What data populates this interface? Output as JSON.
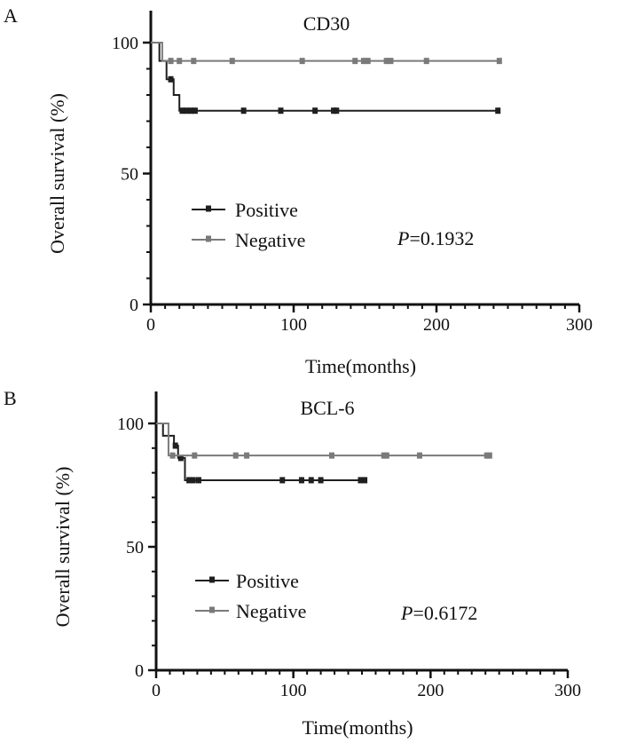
{
  "colors": {
    "positive": "#1f1f1f",
    "negative": "#7a7a7a",
    "axis": "#111111"
  },
  "chart_data": [
    {
      "panel": "A",
      "type": "line",
      "subtype": "kaplan-meier",
      "title": "CD30",
      "xlabel": "Time(months)",
      "ylabel": "Overall survival (%)",
      "xlim": [
        0,
        300
      ],
      "ylim": [
        0,
        100
      ],
      "xticks": [
        "0",
        "100",
        "200",
        "300"
      ],
      "yticks": [
        "0",
        "50",
        "100"
      ],
      "legend_position": "lower-left",
      "p_label": "P",
      "p_value": "=0.1932",
      "series": [
        {
          "name": "Positive",
          "color_key": "positive",
          "steps": [
            [
              0,
              100
            ],
            [
              6,
              93
            ],
            [
              11,
              86
            ],
            [
              16,
              80
            ],
            [
              20,
              74
            ]
          ],
          "end_x": 243,
          "censored": [
            [
              14,
              86
            ],
            [
              22,
              74
            ],
            [
              25,
              74
            ],
            [
              28,
              74
            ],
            [
              31,
              74
            ],
            [
              65,
              74
            ],
            [
              91,
              74
            ],
            [
              115,
              74
            ],
            [
              128,
              74
            ],
            [
              130,
              74
            ],
            [
              243,
              74
            ]
          ]
        },
        {
          "name": "Negative",
          "color_key": "negative",
          "steps": [
            [
              0,
              100
            ],
            [
              8,
              93
            ]
          ],
          "end_x": 244,
          "censored": [
            [
              14,
              93
            ],
            [
              20,
              93
            ],
            [
              30,
              93
            ],
            [
              57,
              93
            ],
            [
              106,
              93
            ],
            [
              143,
              93
            ],
            [
              149,
              93
            ],
            [
              152,
              93
            ],
            [
              165,
              93
            ],
            [
              168,
              93
            ],
            [
              193,
              93
            ],
            [
              244,
              93
            ]
          ]
        }
      ]
    },
    {
      "panel": "B",
      "type": "line",
      "subtype": "kaplan-meier",
      "title": "BCL-6",
      "xlabel": "Time(months)",
      "ylabel": "Overall survival (%)",
      "xlim": [
        0,
        300
      ],
      "ylim": [
        0,
        100
      ],
      "xticks": [
        "0",
        "100",
        "200",
        "300"
      ],
      "yticks": [
        "0",
        "50",
        "100"
      ],
      "legend_position": "lower-left",
      "p_label": "P",
      "p_value": "=0.6172",
      "series": [
        {
          "name": "Positive",
          "color_key": "positive",
          "steps": [
            [
              0,
              100
            ],
            [
              5,
              95
            ],
            [
              13,
              91
            ],
            [
              16,
              86
            ],
            [
              21,
              77
            ]
          ],
          "end_x": 152,
          "censored": [
            [
              14,
              91
            ],
            [
              18,
              86
            ],
            [
              24,
              77
            ],
            [
              27,
              77
            ],
            [
              31,
              77
            ],
            [
              92,
              77
            ],
            [
              106,
              77
            ],
            [
              113,
              77
            ],
            [
              120,
              77
            ],
            [
              149,
              77
            ],
            [
              152,
              77
            ]
          ]
        },
        {
          "name": "Negative",
          "color_key": "negative",
          "steps": [
            [
              0,
              100
            ],
            [
              9,
              87
            ]
          ],
          "end_x": 243,
          "censored": [
            [
              12,
              87
            ],
            [
              28,
              87
            ],
            [
              58,
              87
            ],
            [
              66,
              87
            ],
            [
              128,
              87
            ],
            [
              166,
              87
            ],
            [
              168,
              87
            ],
            [
              192,
              87
            ],
            [
              241,
              87
            ],
            [
              243,
              87
            ]
          ]
        }
      ]
    }
  ]
}
